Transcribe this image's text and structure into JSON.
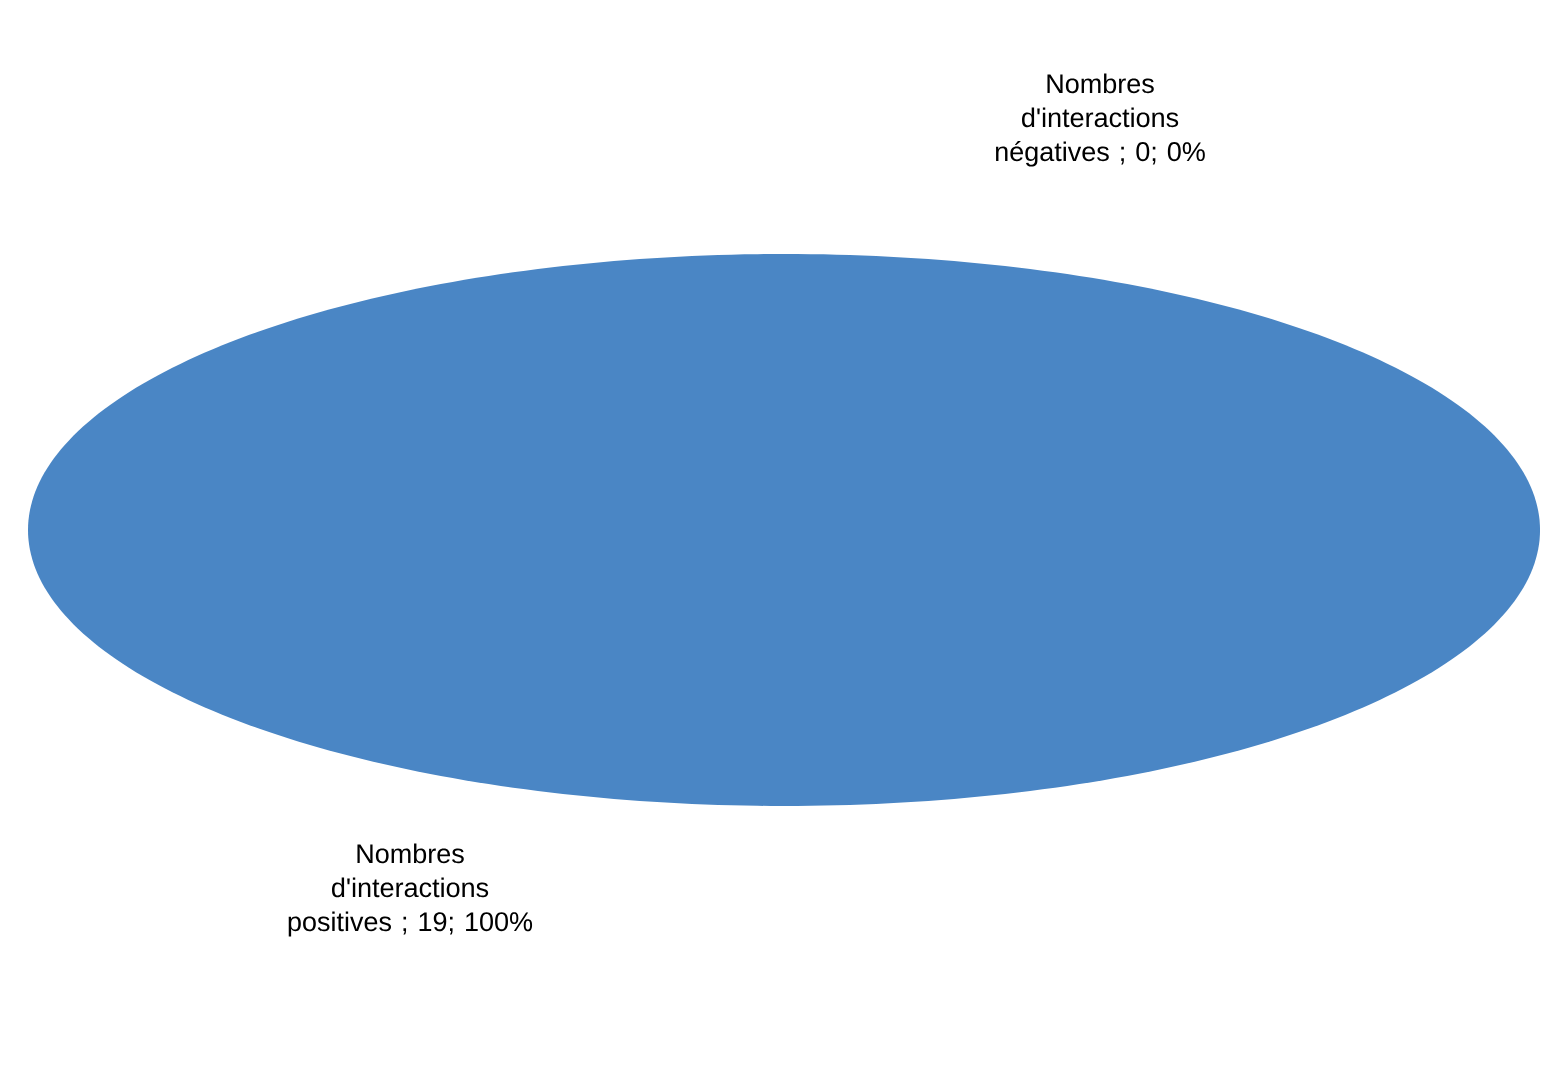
{
  "chart_data": {
    "type": "pie",
    "categories": [
      "Nombres d'interactions positives",
      "Nombres d'interactions négatives"
    ],
    "values": [
      19,
      0
    ],
    "colors": [
      "#4a86c5",
      "#c0652c"
    ],
    "value_labels": [
      "; 19; 100%",
      "; 0; 0%"
    ]
  }
}
